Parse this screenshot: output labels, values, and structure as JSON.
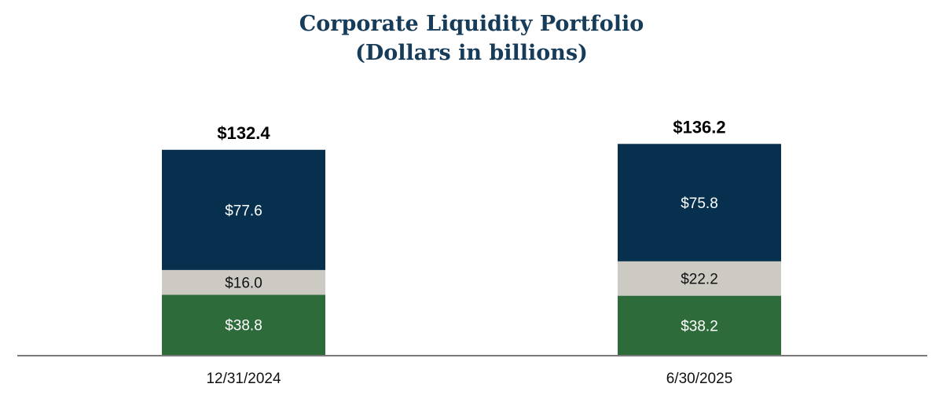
{
  "chart_data": {
    "type": "bar",
    "stacked": true,
    "title": "Corporate Liquidity Portfolio",
    "subtitle": "(Dollars in billions)",
    "categories": [
      "12/31/2024",
      "6/30/2025"
    ],
    "series": [
      {
        "values": [
          38.8,
          38.2
        ],
        "labels": [
          "$38.8",
          "$38.2"
        ],
        "color": "#2e6b3a",
        "label_color": "#ffffff"
      },
      {
        "values": [
          16.0,
          22.2
        ],
        "labels": [
          "$16.0",
          "$22.2"
        ],
        "color": "#cdcac4",
        "label_color": "#111111"
      },
      {
        "values": [
          77.6,
          75.8
        ],
        "labels": [
          "$77.6",
          "$75.8"
        ],
        "color": "#07304f",
        "label_color": "#ffffff"
      }
    ],
    "totals": [
      132.4,
      136.2
    ],
    "total_labels": [
      "$132.4",
      "$136.2"
    ],
    "ylim": [
      0,
      148
    ],
    "grid": false,
    "legend": "none",
    "axis_color": "#7a7a7a"
  }
}
